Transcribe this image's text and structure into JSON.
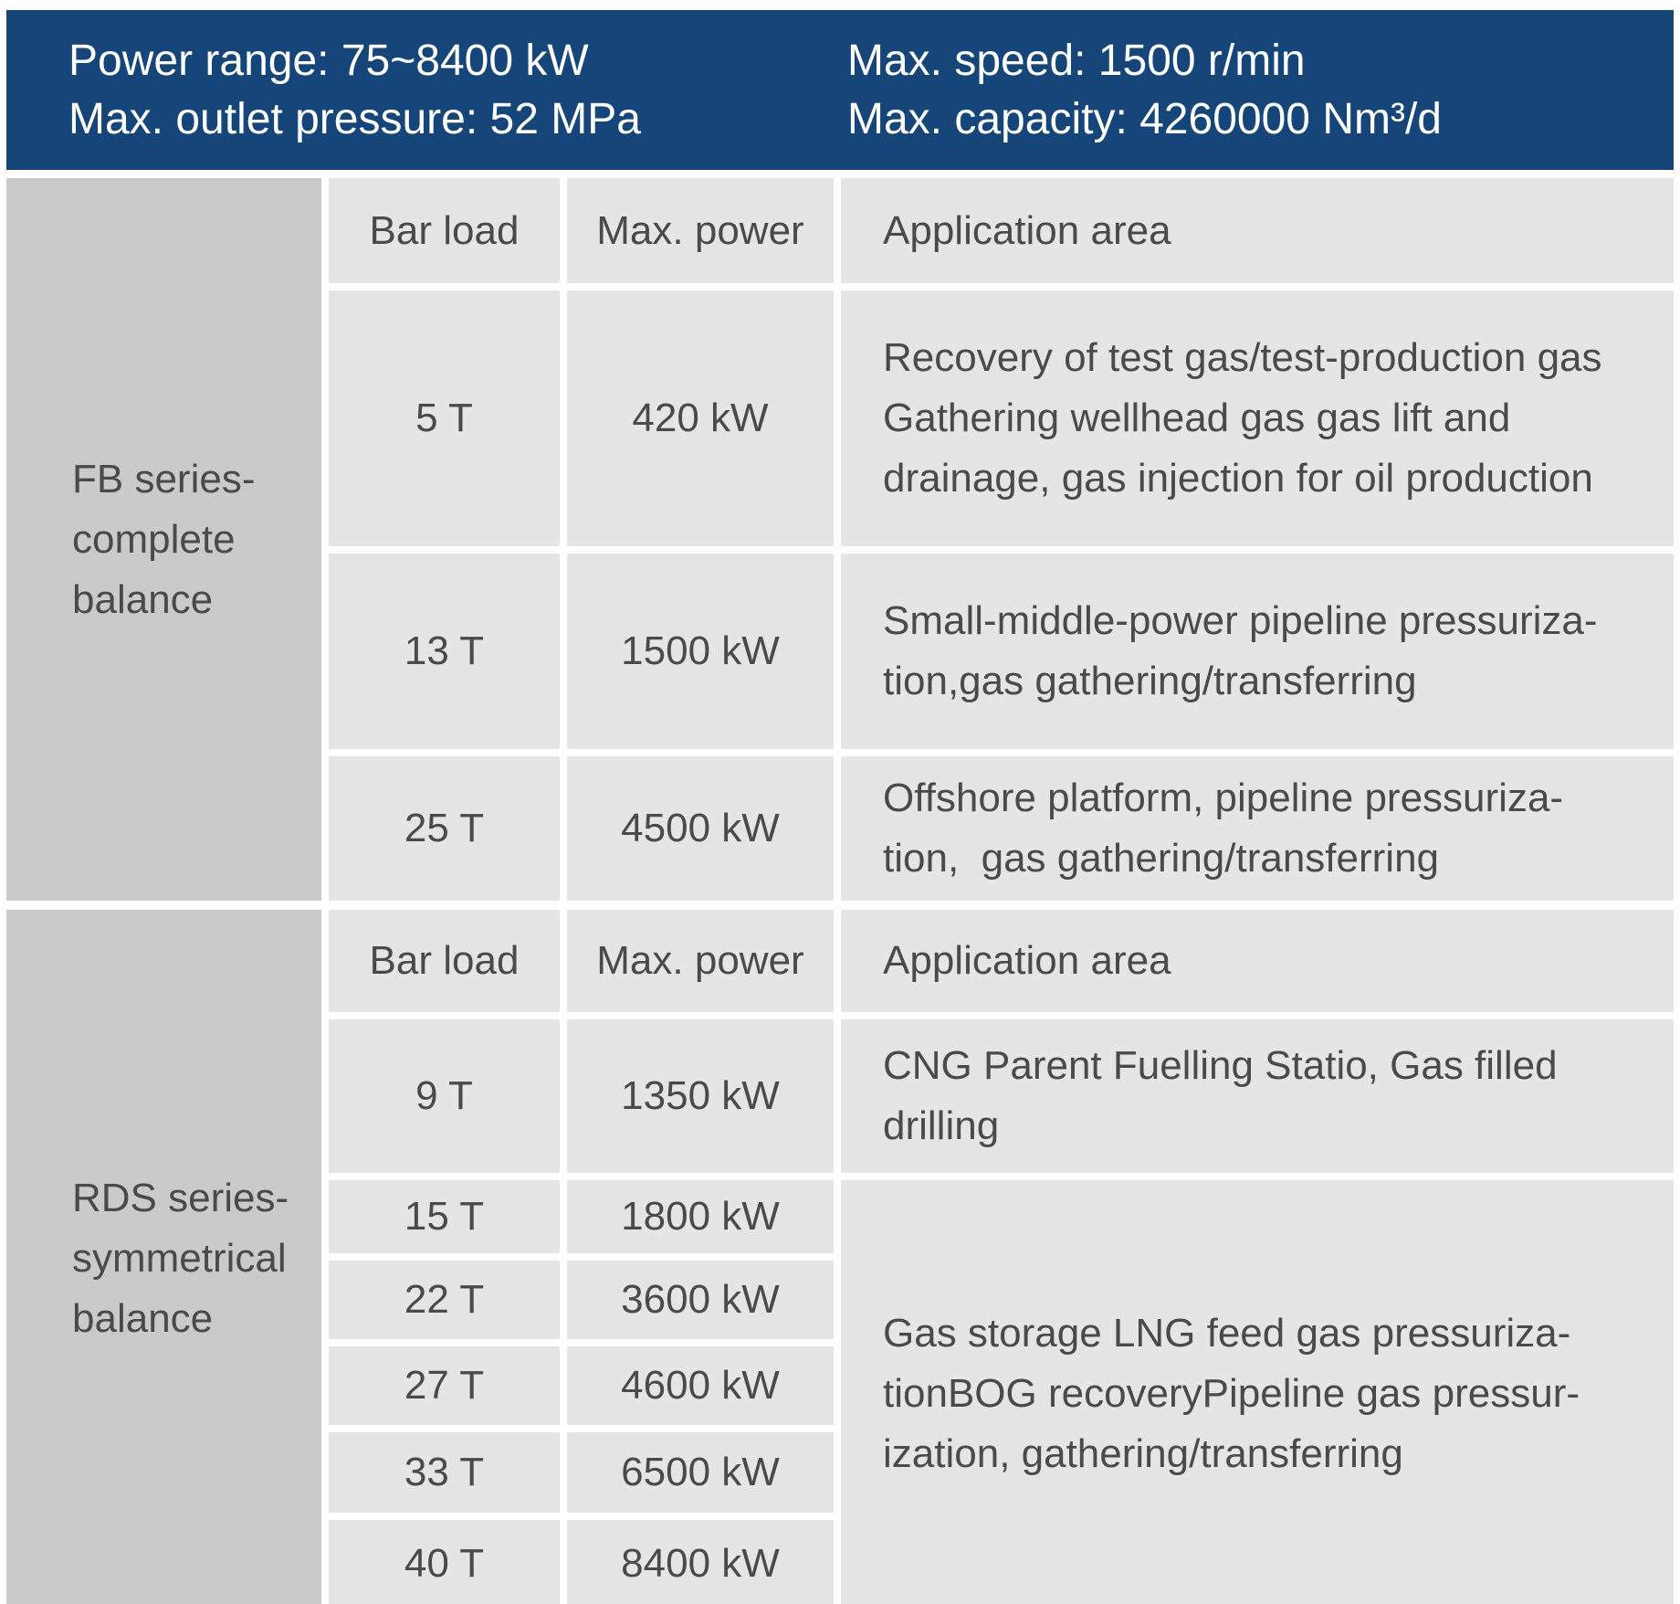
{
  "banner": {
    "left_lines": [
      "Power range: 75~8400 kW",
      "Max. outlet pressure: 52 MPa"
    ],
    "right_lines": [
      "Max. speed: 1500 r/min",
      "Max. capacity: 4260000 Nm³/d"
    ]
  },
  "columns": {
    "bar_load": "Bar load",
    "max_power": "Max. power",
    "application": "Application area"
  },
  "sections": [
    {
      "series_lines": [
        "FB series-",
        "complete",
        "balance"
      ],
      "rows": [
        {
          "bar_load": "5 T",
          "max_power": "420 kW",
          "application_lines": [
            "Recovery of test gas/test-production gas",
            "Gathering wellhead gas gas lift and",
            "drainage, gas injection for oil production"
          ]
        },
        {
          "bar_load": "13 T",
          "max_power": "1500 kW",
          "application_lines": [
            "Small-middle-power pipeline pressuriza-",
            "tion,gas gathering/transferring"
          ]
        },
        {
          "bar_load": "25 T",
          "max_power": "4500 kW",
          "application_lines": [
            "Offshore platform, pipeline pressuriza-",
            "tion,  gas gathering/transferring"
          ]
        }
      ]
    },
    {
      "series_lines": [
        "RDS series-",
        "symmetrical",
        "balance"
      ],
      "rows": [
        {
          "bar_load": "9 T",
          "max_power": "1350 kW",
          "application_lines": [
            "CNG Parent Fuelling Statio, Gas filled",
            "drilling"
          ]
        },
        {
          "bar_load": "15 T",
          "max_power": "1800 kW"
        },
        {
          "bar_load": "22 T",
          "max_power": "3600 kW"
        },
        {
          "bar_load": "27 T",
          "max_power": "4600 kW"
        },
        {
          "bar_load": "33 T",
          "max_power": "6500 kW"
        },
        {
          "bar_load": "40 T",
          "max_power": "8400 kW"
        }
      ],
      "merged_application_lines": [
        "Gas storage LNG feed gas pressuriza-",
        "tionBOG recoveryPipeline gas pressur-",
        "ization, gathering/transferring"
      ]
    }
  ],
  "colors": {
    "banner_bg": "#164679",
    "series_cell_bg": "#c9cacc",
    "data_cell_bg": "#e5e5e7",
    "cell_text": "#4a4a4a",
    "banner_text": "#ffffff"
  }
}
